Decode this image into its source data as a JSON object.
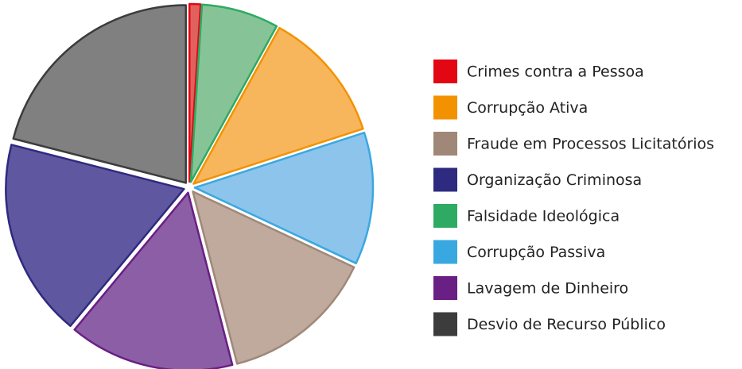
{
  "chart_data": {
    "type": "pie",
    "categories": [
      "Crimes contra a Pessoa",
      "Corrupção Ativa",
      "Fraude em Processos Licitatórios",
      "Organização Criminosa",
      "Falsidade Ideológica",
      "Corrupção Passiva",
      "Lavagem de Dinheiro",
      "Desvio de Recurso Público"
    ],
    "values": [
      1,
      12,
      14,
      18,
      7,
      12,
      15,
      21
    ],
    "colors": [
      "#e30613",
      "#f39200",
      "#a08878",
      "#2e2a7f",
      "#2eaa63",
      "#3aa8e0",
      "#6a1f84",
      "#3c3c3c"
    ],
    "fills": [
      "#e0615e",
      "#f8b65c",
      "#bfaa9d",
      "#5f58a0",
      "#86c497",
      "#8cc4ec",
      "#8b5ea6",
      "#808080"
    ],
    "slice_order": [
      0,
      4,
      1,
      5,
      2,
      6,
      3,
      7
    ],
    "legend": "right"
  }
}
